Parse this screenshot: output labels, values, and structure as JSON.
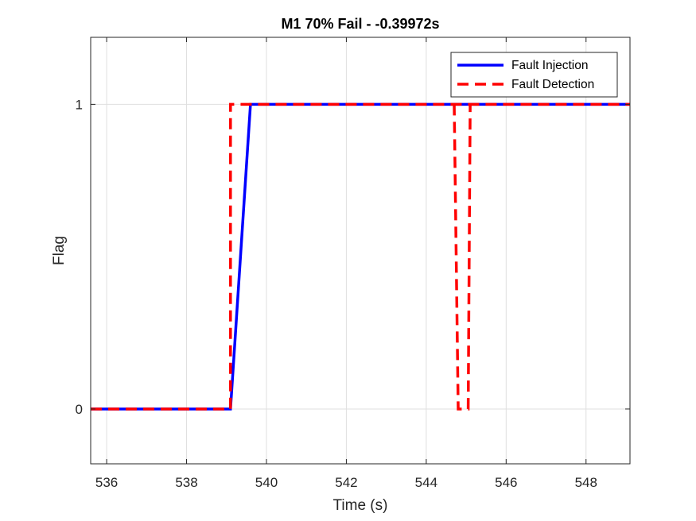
{
  "chart_data": {
    "type": "line",
    "title": "M1 70% Fail - -0.39972s",
    "xlabel": "Time (s)",
    "ylabel": "Flag",
    "xlim": [
      535.6,
      549.1
    ],
    "ylim": [
      -0.18,
      1.22
    ],
    "xticks": [
      536,
      538,
      540,
      542,
      544,
      546,
      548
    ],
    "yticks": [
      0,
      1
    ],
    "xtick_labels": [
      "536",
      "538",
      "540",
      "542",
      "544",
      "546",
      "548"
    ],
    "ytick_labels": [
      "0",
      "1"
    ],
    "grid": true,
    "legend_position": "top-right",
    "series": [
      {
        "name": "Fault Injection",
        "color": "#0000ff",
        "style": "solid",
        "x": [
          535.6,
          539.1,
          539.6,
          549.1
        ],
        "y": [
          0,
          0,
          1,
          1
        ]
      },
      {
        "name": "Fault Detection",
        "color": "#ff0000",
        "style": "dashed",
        "x": [
          535.6,
          539.1,
          539.1,
          549.1
        ],
        "y": [
          0,
          0,
          1,
          1
        ],
        "x2": [
          544.7,
          544.8,
          545.05,
          545.1
        ],
        "y2": [
          1,
          0,
          0,
          1
        ]
      }
    ]
  }
}
